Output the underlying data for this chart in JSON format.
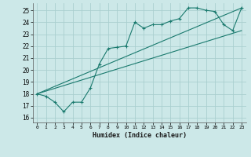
{
  "xlabel": "Humidex (Indice chaleur)",
  "bg_color": "#cce8e8",
  "grid_color": "#aacfcf",
  "line_color": "#1a7a6e",
  "xlim": [
    -0.5,
    23.5
  ],
  "ylim": [
    15.6,
    25.6
  ],
  "yticks": [
    16,
    17,
    18,
    19,
    20,
    21,
    22,
    23,
    24,
    25
  ],
  "xticks": [
    0,
    1,
    2,
    3,
    4,
    5,
    6,
    7,
    8,
    9,
    10,
    11,
    12,
    13,
    14,
    15,
    16,
    17,
    18,
    19,
    20,
    21,
    22,
    23
  ],
  "line1_x": [
    0,
    1,
    2,
    3,
    4,
    5,
    6,
    7,
    8,
    9,
    10,
    11,
    12,
    13,
    14,
    15,
    16,
    17,
    18,
    19,
    20,
    21,
    22,
    23
  ],
  "line1_y": [
    18.0,
    17.8,
    17.3,
    16.5,
    17.3,
    17.3,
    18.5,
    20.5,
    21.8,
    21.9,
    22.0,
    24.0,
    23.5,
    23.8,
    23.8,
    24.1,
    24.3,
    25.2,
    25.2,
    25.0,
    24.9,
    23.8,
    23.3,
    25.2
  ],
  "line2_x": [
    0,
    23
  ],
  "line2_y": [
    18.0,
    25.2
  ],
  "line3_x": [
    0,
    23
  ],
  "line3_y": [
    18.0,
    23.3
  ]
}
